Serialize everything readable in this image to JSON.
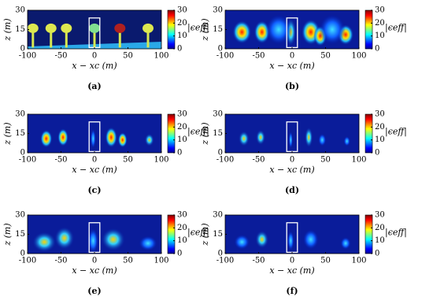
{
  "chart_data": [
    {
      "type": "heatmap",
      "panel_label": "(a)",
      "xlabel": "x − xc (m)",
      "ylabel": "z (m)",
      "xlim": [
        -100,
        100
      ],
      "xticks": [
        -100,
        -50,
        0,
        50,
        100
      ],
      "ylim": [
        0,
        30
      ],
      "yticks": [
        0,
        15,
        30
      ],
      "colorbar_label": "|ϵeff|",
      "clim": [
        0,
        30
      ],
      "cticks": [
        0,
        10,
        20,
        30
      ],
      "box_x": [
        -8,
        8
      ],
      "box_z": [
        1,
        24
      ]
    },
    {
      "type": "heatmap",
      "panel_label": "(b)",
      "xlabel": "x − xc (m)",
      "ylabel": "z (m)",
      "xlim": [
        -100,
        100
      ],
      "xticks": [
        -100,
        -50,
        0,
        50,
        100
      ],
      "ylim": [
        0,
        30
      ],
      "yticks": [
        0,
        15,
        30
      ],
      "colorbar_label": "|ϵeff|",
      "clim": [
        0,
        30
      ],
      "cticks": [
        0,
        10,
        20,
        30
      ],
      "box_x": [
        -8,
        8
      ],
      "box_z": [
        1,
        24
      ]
    },
    {
      "type": "heatmap",
      "panel_label": "(c)",
      "xlabel": "x − xc (m)",
      "ylabel": "z (m)",
      "xlim": [
        -100,
        100
      ],
      "xticks": [
        -100,
        -50,
        0,
        50,
        100
      ],
      "ylim": [
        0,
        30
      ],
      "yticks": [
        0,
        15,
        30
      ],
      "colorbar_label": "|ϵeff|",
      "clim": [
        0,
        30
      ],
      "cticks": [
        0,
        10,
        20,
        30
      ],
      "box_x": [
        -8,
        8
      ],
      "box_z": [
        1,
        24
      ]
    },
    {
      "type": "heatmap",
      "panel_label": "(d)",
      "xlabel": "x − xc (m)",
      "ylabel": "z (m)",
      "xlim": [
        -100,
        100
      ],
      "xticks": [
        -100,
        -50,
        0,
        50,
        100
      ],
      "ylim": [
        0,
        30
      ],
      "yticks": [
        0,
        15,
        30
      ],
      "colorbar_label": "|ϵeff|",
      "clim": [
        0,
        30
      ],
      "cticks": [
        0,
        10,
        20,
        30
      ],
      "box_x": [
        -8,
        8
      ],
      "box_z": [
        1,
        24
      ]
    },
    {
      "type": "heatmap",
      "panel_label": "(e)",
      "xlabel": "x − xc (m)",
      "ylabel": "z (m)",
      "xlim": [
        -100,
        100
      ],
      "xticks": [
        -100,
        -50,
        0,
        50,
        100
      ],
      "ylim": [
        0,
        30
      ],
      "yticks": [
        0,
        15,
        30
      ],
      "colorbar_label": "|ϵeff|",
      "clim": [
        0,
        30
      ],
      "cticks": [
        0,
        10,
        20,
        30
      ],
      "box_x": [
        -8,
        8
      ],
      "box_z": [
        1,
        24
      ]
    },
    {
      "type": "heatmap",
      "panel_label": "(f)",
      "xlabel": "x − xc (m)",
      "ylabel": "z (m)",
      "xlim": [
        -100,
        100
      ],
      "xticks": [
        -100,
        -50,
        0,
        50,
        100
      ],
      "ylim": [
        0,
        30
      ],
      "yticks": [
        0,
        15,
        30
      ],
      "colorbar_label": "|ϵeff|",
      "clim": [
        0,
        30
      ],
      "cticks": [
        0,
        10,
        20,
        30
      ],
      "box_x": [
        -8,
        8
      ],
      "box_z": [
        1,
        24
      ]
    }
  ]
}
